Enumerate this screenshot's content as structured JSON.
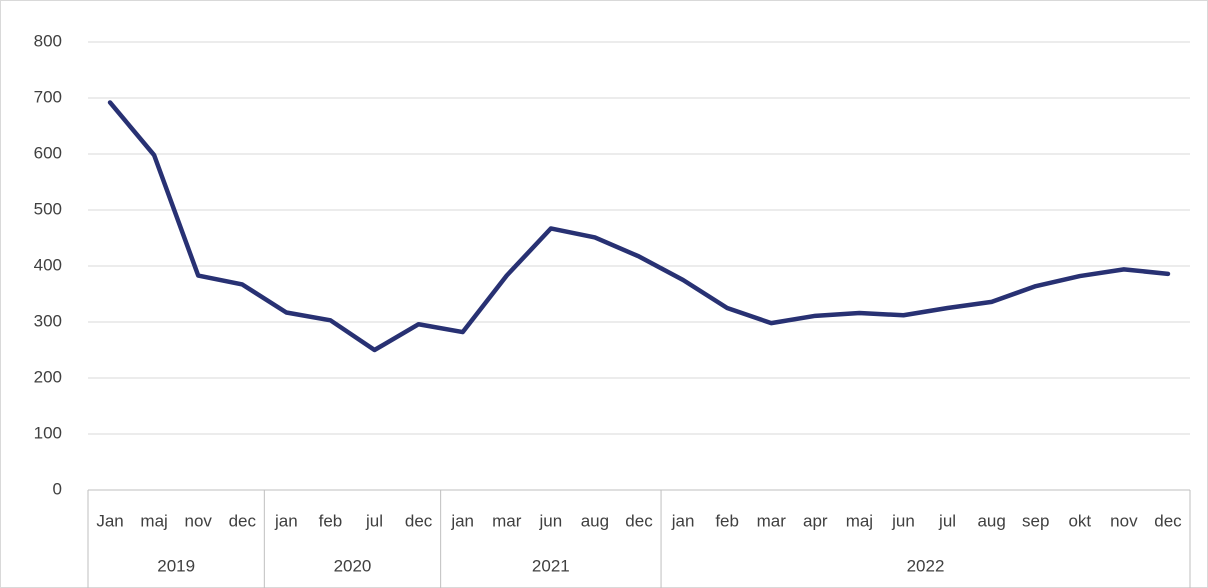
{
  "chart_data": {
    "type": "line",
    "groups": [
      {
        "name": "2019",
        "categories": [
          "Jan",
          "maj",
          "nov",
          "dec"
        ]
      },
      {
        "name": "2020",
        "categories": [
          "jan",
          "feb",
          "jul",
          "dec"
        ]
      },
      {
        "name": "2021",
        "categories": [
          "jan",
          "mar",
          "jun",
          "aug",
          "dec"
        ]
      },
      {
        "name": "2022",
        "categories": [
          "jan",
          "feb",
          "mar",
          "apr",
          "maj",
          "jun",
          "jul",
          "aug",
          "sep",
          "okt",
          "nov",
          "dec"
        ]
      }
    ],
    "values": [
      692,
      598,
      383,
      367,
      317,
      303,
      250,
      296,
      282,
      383,
      467,
      451,
      417,
      375,
      325,
      298,
      311,
      316,
      312,
      325,
      336,
      364,
      382,
      394,
      386
    ],
    "color": "#283173",
    "ylim": [
      0,
      800
    ],
    "yticks": [
      0,
      100,
      200,
      300,
      400,
      500,
      600,
      700,
      800
    ],
    "grid": true
  }
}
